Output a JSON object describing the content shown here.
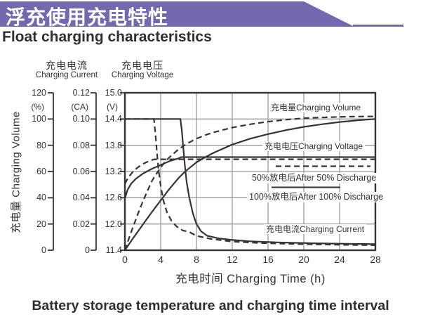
{
  "header": {
    "banner_title": "浮充使用充电特性",
    "subtitle": "Float charging characteristics"
  },
  "caption": "Battery storage temperature and charging time interval",
  "colors": {
    "banner": "#7668ae",
    "line": "#3a3230",
    "grid": "#9a9a9a",
    "text": "#3a3230"
  },
  "chart_data": {
    "type": "line",
    "title": "Float charging characteristics",
    "x_axis": {
      "label": "充电时间 Charging Time (h)",
      "min": 0,
      "max": 28,
      "ticks": [
        0,
        4,
        8,
        12,
        16,
        20,
        24,
        28
      ],
      "gridlines": [
        4,
        8,
        12,
        16,
        20,
        24
      ]
    },
    "axes": {
      "volume": {
        "rot_label": "充电量 Charging Volume",
        "unit": "(%)",
        "min": 0,
        "max": 120,
        "ticks": [
          "120",
          "100",
          "80",
          "60",
          "40",
          "20",
          "0"
        ]
      },
      "current": {
        "header_cn": "充电电流",
        "header_en": "Charging Current",
        "unit": "(CA)",
        "min": 0,
        "max": 0.12,
        "ticks": [
          "0.12",
          "0.10",
          "0.08",
          "0.06",
          "0.04",
          "0.02",
          "0"
        ]
      },
      "voltage": {
        "header_cn": "充电电压",
        "header_en": "Charging Voltage",
        "unit": "(V)",
        "min": 11.4,
        "max": 15.0,
        "ticks": [
          "15.0",
          "14.4",
          "13.8",
          "13.2",
          "12.6",
          "12.0",
          "11.4"
        ]
      }
    },
    "labels": {
      "volume": "充电量Charging Volume",
      "voltage": "充电电压Charging Voltage",
      "after50": "50%放电后After 50% Discharge",
      "after100": "100%放电后After 100% Discharge",
      "current": "充电电流Charging Current"
    },
    "series": [
      {
        "name": "charging-volume-after-50-discharge",
        "axis": "volume",
        "style": "dashed",
        "points": [
          [
            0,
            0
          ],
          [
            0.5,
            10
          ],
          [
            1,
            19.5
          ],
          [
            1.5,
            28.5
          ],
          [
            2,
            37
          ],
          [
            2.5,
            45
          ],
          [
            3,
            52.5
          ],
          [
            3.3,
            56
          ],
          [
            4,
            63
          ],
          [
            4.5,
            67.5
          ],
          [
            5,
            71
          ],
          [
            6,
            77
          ],
          [
            7,
            81.5
          ],
          [
            8,
            85
          ],
          [
            9,
            87.8
          ],
          [
            10,
            90
          ],
          [
            12,
            93.5
          ],
          [
            14,
            96
          ],
          [
            16,
            98
          ],
          [
            18,
            99.5
          ],
          [
            20,
            100.6
          ],
          [
            22,
            101.2
          ],
          [
            24,
            101.6
          ],
          [
            26,
            101.9
          ],
          [
            28,
            102
          ]
        ]
      },
      {
        "name": "charging-volume-after-100-discharge",
        "axis": "volume",
        "style": "solid",
        "points": [
          [
            0,
            0
          ],
          [
            1,
            10
          ],
          [
            2,
            19.5
          ],
          [
            3,
            29
          ],
          [
            4,
            38
          ],
          [
            5,
            47
          ],
          [
            6,
            55
          ],
          [
            6.5,
            58.5
          ],
          [
            7,
            61.5
          ],
          [
            8,
            67
          ],
          [
            9,
            71
          ],
          [
            10,
            74.5
          ],
          [
            12,
            80.5
          ],
          [
            14,
            85
          ],
          [
            16,
            88.5
          ],
          [
            18,
            91.5
          ],
          [
            20,
            94
          ],
          [
            22,
            96
          ],
          [
            24,
            97.7
          ],
          [
            26,
            99
          ],
          [
            28,
            100
          ]
        ]
      },
      {
        "name": "charging-voltage-after-50-discharge",
        "axis": "voltage",
        "style": "dashed",
        "points": [
          [
            0,
            12.92
          ],
          [
            0.4,
            13.07
          ],
          [
            0.8,
            13.17
          ],
          [
            1.3,
            13.27
          ],
          [
            1.9,
            13.36
          ],
          [
            2.5,
            13.42
          ],
          [
            3,
            13.46
          ],
          [
            3.3,
            13.48
          ],
          [
            28,
            13.48
          ]
        ]
      },
      {
        "name": "charging-voltage-after-100-discharge",
        "axis": "voltage",
        "style": "solid",
        "points": [
          [
            0,
            12.58
          ],
          [
            0.3,
            12.78
          ],
          [
            0.7,
            12.92
          ],
          [
            1.2,
            13.03
          ],
          [
            2,
            13.15
          ],
          [
            3,
            13.26
          ],
          [
            4,
            13.35
          ],
          [
            5,
            13.44
          ],
          [
            6,
            13.5
          ],
          [
            6.3,
            13.53
          ],
          [
            28,
            13.53
          ]
        ]
      },
      {
        "name": "charging-current-after-50-discharge",
        "axis": "current",
        "style": "dashed",
        "points": [
          [
            0,
            0.1
          ],
          [
            3.25,
            0.1
          ],
          [
            3.4,
            0.09
          ],
          [
            3.55,
            0.077
          ],
          [
            3.75,
            0.062
          ],
          [
            4,
            0.049
          ],
          [
            4.3,
            0.038
          ],
          [
            4.7,
            0.029
          ],
          [
            5.2,
            0.0225
          ],
          [
            5.8,
            0.018
          ],
          [
            6.5,
            0.015
          ],
          [
            7.2,
            0.0139
          ],
          [
            8,
            0.011
          ],
          [
            9.6,
            0.0086
          ],
          [
            12,
            0.0066
          ],
          [
            15,
            0.0055
          ],
          [
            19,
            0.0047
          ],
          [
            24,
            0.0041
          ],
          [
            28,
            0.0038
          ]
        ]
      },
      {
        "name": "charging-current-after-100-discharge",
        "axis": "current",
        "style": "solid",
        "points": [
          [
            0,
            0.1
          ],
          [
            6.2,
            0.1
          ],
          [
            6.35,
            0.092
          ],
          [
            6.5,
            0.08
          ],
          [
            6.7,
            0.065
          ],
          [
            6.9,
            0.052
          ],
          [
            7.2,
            0.04
          ],
          [
            7.6,
            0.028
          ],
          [
            8,
            0.02
          ],
          [
            8.5,
            0.0145
          ],
          [
            9.2,
            0.011
          ],
          [
            10.5,
            0.009
          ],
          [
            12,
            0.0078
          ],
          [
            14,
            0.0068
          ],
          [
            17,
            0.006
          ],
          [
            21,
            0.0053
          ],
          [
            24,
            0.005
          ],
          [
            28,
            0.0046
          ]
        ]
      }
    ],
    "legend_position": "inside-right"
  }
}
